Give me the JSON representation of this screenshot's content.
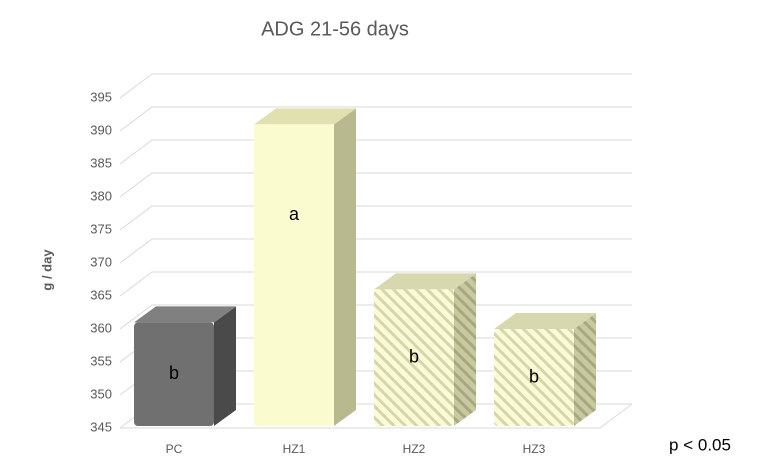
{
  "chart_data": {
    "type": "bar3d",
    "title": "ADG 21-56 days",
    "y_label": "g / day",
    "categories": [
      "PC",
      "HZ1",
      "HZ2",
      "HZ3"
    ],
    "values": [
      361,
      391,
      366,
      360
    ],
    "letters": [
      "b",
      "a",
      "b",
      "b"
    ],
    "colors": [
      "#707070",
      "#fbfbd0",
      "#fbfbd0",
      "#fbfbd0"
    ],
    "hatch": [
      false,
      false,
      true,
      true
    ],
    "ylim": [
      345,
      395
    ],
    "yticks": [
      345,
      350,
      355,
      360,
      365,
      370,
      375,
      380,
      385,
      390,
      395
    ],
    "grid": true,
    "annotation": "p < 0.05"
  }
}
